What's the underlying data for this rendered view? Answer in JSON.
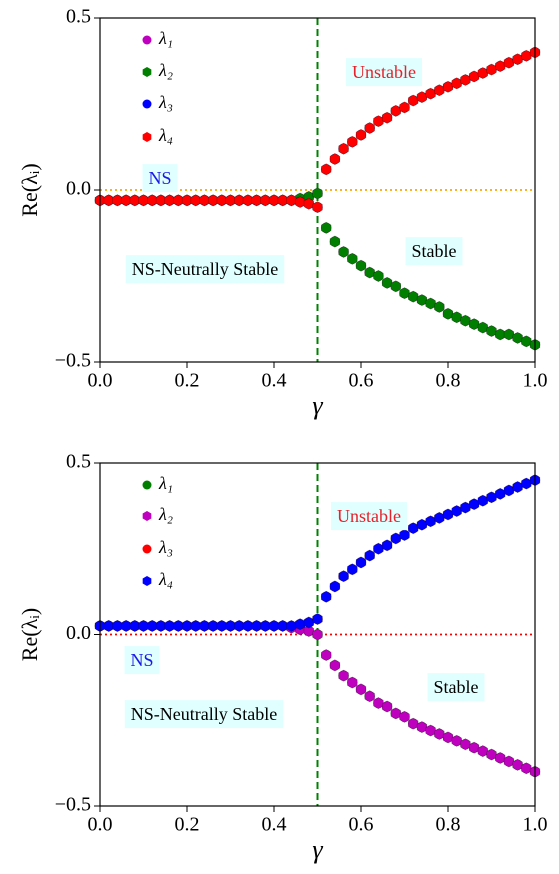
{
  "chart_data": [
    {
      "type": "scatter",
      "xlabel": "γ",
      "ylabel": "Re(λᵢ)",
      "xlim": [
        0,
        1
      ],
      "ylim": [
        -0.5,
        0.5
      ],
      "xticks": [
        {
          "value": 0,
          "label": "0.0"
        },
        0.2,
        0.4,
        0.6,
        0.8,
        {
          "value": 1,
          "label": "1.0"
        }
      ],
      "yticks": [
        {
          "value": -0.5,
          "label": "−0.5"
        },
        {
          "value": 0,
          "label": "0.0"
        },
        0.5
      ],
      "hlines": [
        {
          "y": 0,
          "color": "orange",
          "style": "dotted"
        }
      ],
      "vlines": [
        {
          "x": 0.5,
          "color": "green",
          "style": "dashed"
        }
      ],
      "annotations": [
        {
          "text": "Unstable",
          "color": "#e8202a"
        },
        {
          "text": "NS",
          "color": "#1a1ae6"
        },
        {
          "text": "Stable",
          "color": "#000000"
        },
        {
          "text": "NS-Neutrally Stable",
          "color": "#000000"
        }
      ],
      "x": [
        0,
        0.02,
        0.04,
        0.06,
        0.08,
        0.1,
        0.12,
        0.14,
        0.16,
        0.18,
        0.2,
        0.22,
        0.24,
        0.26,
        0.28,
        0.3,
        0.32,
        0.34,
        0.36,
        0.38,
        0.4,
        0.42,
        0.44,
        0.46,
        0.48,
        0.5,
        0.52,
        0.54,
        0.56,
        0.58,
        0.6,
        0.62,
        0.64,
        0.66,
        0.68,
        0.7,
        0.72,
        0.74,
        0.76,
        0.78,
        0.8,
        0.82,
        0.84,
        0.86,
        0.88,
        0.9,
        0.92,
        0.94,
        0.96,
        0.98,
        1
      ],
      "series": [
        {
          "name": "λ₁",
          "color": "#bf00bf",
          "marker": "circle",
          "values": [
            -0.03,
            -0.03,
            -0.03,
            -0.03,
            -0.03,
            -0.03,
            -0.03,
            -0.03,
            -0.03,
            -0.03,
            -0.03,
            -0.03,
            -0.03,
            -0.03,
            -0.03,
            -0.03,
            -0.03,
            -0.03,
            -0.03,
            -0.03,
            -0.03,
            -0.03,
            -0.03,
            -0.025,
            -0.02,
            -0.01,
            -0.11,
            -0.15,
            -0.18,
            -0.2,
            -0.22,
            -0.24,
            -0.25,
            -0.27,
            -0.28,
            -0.3,
            -0.31,
            -0.32,
            -0.33,
            -0.34,
            -0.36,
            -0.37,
            -0.38,
            -0.39,
            -0.4,
            -0.41,
            -0.42,
            -0.42,
            -0.43,
            -0.44,
            -0.45
          ]
        },
        {
          "name": "λ₂",
          "color": "#007f00",
          "marker": "hexagon",
          "values": [
            -0.03,
            -0.03,
            -0.03,
            -0.03,
            -0.03,
            -0.03,
            -0.03,
            -0.03,
            -0.03,
            -0.03,
            -0.03,
            -0.03,
            -0.03,
            -0.03,
            -0.03,
            -0.03,
            -0.03,
            -0.03,
            -0.03,
            -0.03,
            -0.03,
            -0.03,
            -0.03,
            -0.025,
            -0.02,
            -0.01,
            -0.11,
            -0.15,
            -0.18,
            -0.2,
            -0.22,
            -0.24,
            -0.25,
            -0.27,
            -0.28,
            -0.3,
            -0.31,
            -0.32,
            -0.33,
            -0.34,
            -0.36,
            -0.37,
            -0.38,
            -0.39,
            -0.4,
            -0.41,
            -0.42,
            -0.42,
            -0.43,
            -0.44,
            -0.45
          ]
        },
        {
          "name": "λ₃",
          "color": "#0000ff",
          "marker": "circle",
          "values": [
            -0.03,
            -0.03,
            -0.03,
            -0.03,
            -0.03,
            -0.03,
            -0.03,
            -0.03,
            -0.03,
            -0.03,
            -0.03,
            -0.03,
            -0.03,
            -0.03,
            -0.03,
            -0.03,
            -0.03,
            -0.03,
            -0.03,
            -0.03,
            -0.03,
            -0.03,
            -0.03,
            -0.035,
            -0.04,
            -0.05,
            0.06,
            0.09,
            0.12,
            0.14,
            0.16,
            0.18,
            0.2,
            0.21,
            0.23,
            0.24,
            0.26,
            0.27,
            0.28,
            0.29,
            0.3,
            0.31,
            0.32,
            0.33,
            0.34,
            0.35,
            0.36,
            0.37,
            0.38,
            0.39,
            0.4
          ]
        },
        {
          "name": "λ₄",
          "color": "#ff0000",
          "marker": "hexagon",
          "values": [
            -0.03,
            -0.03,
            -0.03,
            -0.03,
            -0.03,
            -0.03,
            -0.03,
            -0.03,
            -0.03,
            -0.03,
            -0.03,
            -0.03,
            -0.03,
            -0.03,
            -0.03,
            -0.03,
            -0.03,
            -0.03,
            -0.03,
            -0.03,
            -0.03,
            -0.03,
            -0.03,
            -0.035,
            -0.04,
            -0.05,
            0.06,
            0.09,
            0.12,
            0.14,
            0.16,
            0.18,
            0.2,
            0.21,
            0.23,
            0.24,
            0.26,
            0.27,
            0.28,
            0.29,
            0.3,
            0.31,
            0.32,
            0.33,
            0.34,
            0.35,
            0.36,
            0.37,
            0.38,
            0.39,
            0.4
          ]
        }
      ]
    },
    {
      "type": "scatter",
      "xlabel": "γ",
      "ylabel": "Re(λᵢ)",
      "xlim": [
        0,
        1
      ],
      "ylim": [
        -0.5,
        0.5
      ],
      "xticks": [
        {
          "value": 0,
          "label": "0.0"
        },
        0.2,
        0.4,
        0.6,
        0.8,
        {
          "value": 1,
          "label": "1.0"
        }
      ],
      "yticks": [
        {
          "value": -0.5,
          "label": "−0.5"
        },
        {
          "value": 0,
          "label": "0.0"
        },
        0.5
      ],
      "hlines": [
        {
          "y": 0,
          "color": "red",
          "style": "dotted"
        }
      ],
      "vlines": [
        {
          "x": 0.5,
          "color": "green",
          "style": "dashed"
        }
      ],
      "annotations": [
        {
          "text": "Unstable",
          "color": "#e8202a"
        },
        {
          "text": "NS",
          "color": "#1a1ae6"
        },
        {
          "text": "Stable",
          "color": "#000000"
        },
        {
          "text": "NS-Neutrally Stable",
          "color": "#000000"
        }
      ],
      "x": [
        0,
        0.02,
        0.04,
        0.06,
        0.08,
        0.1,
        0.12,
        0.14,
        0.16,
        0.18,
        0.2,
        0.22,
        0.24,
        0.26,
        0.28,
        0.3,
        0.32,
        0.34,
        0.36,
        0.38,
        0.4,
        0.42,
        0.44,
        0.46,
        0.48,
        0.5,
        0.52,
        0.54,
        0.56,
        0.58,
        0.6,
        0.62,
        0.64,
        0.66,
        0.68,
        0.7,
        0.72,
        0.74,
        0.76,
        0.78,
        0.8,
        0.82,
        0.84,
        0.86,
        0.88,
        0.9,
        0.92,
        0.94,
        0.96,
        0.98,
        1
      ],
      "series": [
        {
          "name": "λ₁",
          "color": "#007f00",
          "marker": "circle",
          "values": [
            0.025,
            0.025,
            0.025,
            0.025,
            0.025,
            0.025,
            0.025,
            0.025,
            0.025,
            0.025,
            0.025,
            0.025,
            0.025,
            0.025,
            0.025,
            0.025,
            0.025,
            0.025,
            0.025,
            0.025,
            0.025,
            0.025,
            0.02,
            0.015,
            0.01,
            0.0,
            -0.06,
            -0.09,
            -0.12,
            -0.14,
            -0.16,
            -0.18,
            -0.2,
            -0.21,
            -0.23,
            -0.24,
            -0.26,
            -0.27,
            -0.28,
            -0.29,
            -0.3,
            -0.31,
            -0.32,
            -0.33,
            -0.34,
            -0.35,
            -0.36,
            -0.37,
            -0.38,
            -0.39,
            -0.4
          ]
        },
        {
          "name": "λ₂",
          "color": "#bf00bf",
          "marker": "hexagon",
          "values": [
            0.025,
            0.025,
            0.025,
            0.025,
            0.025,
            0.025,
            0.025,
            0.025,
            0.025,
            0.025,
            0.025,
            0.025,
            0.025,
            0.025,
            0.025,
            0.025,
            0.025,
            0.025,
            0.025,
            0.025,
            0.025,
            0.025,
            0.02,
            0.015,
            0.01,
            0.0,
            -0.06,
            -0.09,
            -0.12,
            -0.14,
            -0.16,
            -0.18,
            -0.2,
            -0.21,
            -0.23,
            -0.24,
            -0.26,
            -0.27,
            -0.28,
            -0.29,
            -0.3,
            -0.31,
            -0.32,
            -0.33,
            -0.34,
            -0.35,
            -0.36,
            -0.37,
            -0.38,
            -0.39,
            -0.4
          ]
        },
        {
          "name": "λ₃",
          "color": "#ff0000",
          "marker": "circle",
          "values": [
            0.025,
            0.025,
            0.025,
            0.025,
            0.025,
            0.025,
            0.025,
            0.025,
            0.025,
            0.025,
            0.025,
            0.025,
            0.025,
            0.025,
            0.025,
            0.025,
            0.025,
            0.025,
            0.025,
            0.025,
            0.025,
            0.025,
            0.025,
            0.03,
            0.035,
            0.045,
            0.11,
            0.14,
            0.17,
            0.19,
            0.21,
            0.23,
            0.25,
            0.26,
            0.28,
            0.29,
            0.31,
            0.32,
            0.33,
            0.34,
            0.35,
            0.36,
            0.37,
            0.38,
            0.39,
            0.4,
            0.41,
            0.42,
            0.43,
            0.44,
            0.45
          ]
        },
        {
          "name": "λ₄",
          "color": "#0000ff",
          "marker": "hexagon",
          "values": [
            0.025,
            0.025,
            0.025,
            0.025,
            0.025,
            0.025,
            0.025,
            0.025,
            0.025,
            0.025,
            0.025,
            0.025,
            0.025,
            0.025,
            0.025,
            0.025,
            0.025,
            0.025,
            0.025,
            0.025,
            0.025,
            0.025,
            0.025,
            0.03,
            0.035,
            0.045,
            0.11,
            0.14,
            0.17,
            0.19,
            0.21,
            0.23,
            0.25,
            0.26,
            0.28,
            0.29,
            0.31,
            0.32,
            0.33,
            0.34,
            0.35,
            0.36,
            0.37,
            0.38,
            0.39,
            0.4,
            0.41,
            0.42,
            0.43,
            0.44,
            0.45
          ]
        }
      ]
    }
  ]
}
